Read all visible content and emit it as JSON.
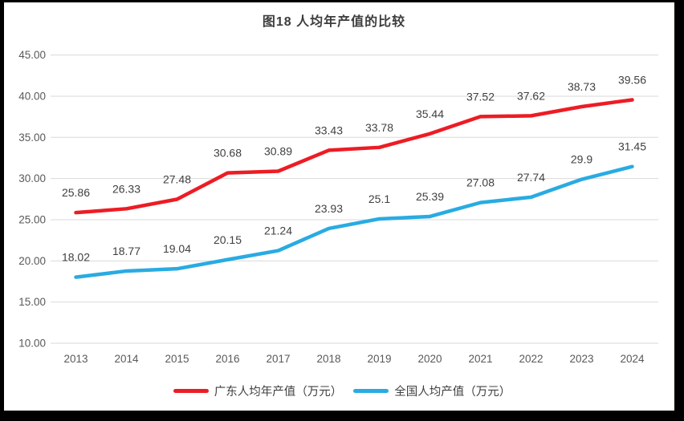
{
  "window": {
    "background": "#ffffff",
    "frame_color": "#000000"
  },
  "chart_data": {
    "type": "line",
    "title": "图18 人均年产值的比较",
    "categories": [
      "2013",
      "2014",
      "2015",
      "2016",
      "2017",
      "2018",
      "2019",
      "2020",
      "2021",
      "2022",
      "2023",
      "2024"
    ],
    "series": [
      {
        "name": "广东人均年产值（万元）",
        "color": "#ED1C24",
        "values": [
          25.86,
          26.33,
          27.48,
          30.68,
          30.89,
          33.43,
          33.78,
          35.44,
          37.52,
          37.62,
          38.73,
          39.56
        ]
      },
      {
        "name": "全国人均产值（万元）",
        "color": "#29ABE2",
        "values": [
          18.02,
          18.77,
          19.04,
          20.15,
          21.24,
          23.93,
          25.1,
          25.39,
          27.08,
          27.74,
          29.9,
          31.45
        ]
      }
    ],
    "y_axis": {
      "min": 10,
      "max": 45,
      "step": 5,
      "tick_labels": [
        "10.00",
        "15.00",
        "20.00",
        "25.00",
        "30.00",
        "35.00",
        "40.00",
        "45.00"
      ]
    },
    "x_axis_label": "",
    "y_axis_label": "",
    "grid": "horizontal",
    "gridline_color": "#D9D9D9",
    "axis_text_color": "#595959",
    "data_label_color": "#404040",
    "data_labels": "above",
    "legend_position": "bottom"
  }
}
